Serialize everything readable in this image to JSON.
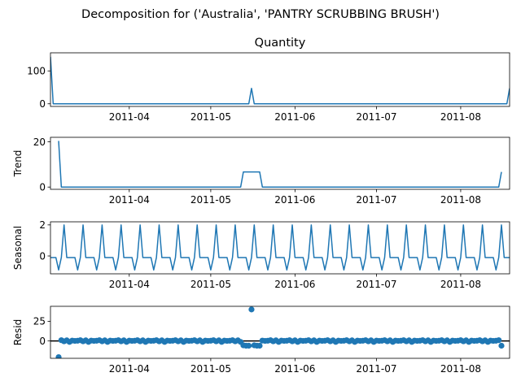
{
  "figure": {
    "suptitle": "Decomposition for ('Australia', 'PANTRY SCRUBBING BRUSH')"
  },
  "chart_data": [
    {
      "panel": "observed",
      "type": "line",
      "title": "Quantity",
      "ylabel": "",
      "ylim": [
        -8,
        155
      ],
      "yticks": [
        0,
        100
      ],
      "xlim": [
        "2011-03-03",
        "2011-08-19"
      ],
      "xticks": [
        "2011-04",
        "2011-05",
        "2011-06",
        "2011-07",
        "2011-08"
      ],
      "color": "#1f77b4",
      "series": [
        {
          "values": [
            {
              "x": "2011-03-03",
              "y": 143
            },
            {
              "x": "2011-03-04",
              "y": 0
            },
            {
              "x": "2011-05-15",
              "y": 0
            },
            {
              "x": "2011-05-16",
              "y": 47
            },
            {
              "x": "2011-05-17",
              "y": 0
            },
            {
              "x": "2011-08-18",
              "y": 0
            },
            {
              "x": "2011-08-19",
              "y": 47
            }
          ]
        }
      ]
    },
    {
      "panel": "trend",
      "type": "line",
      "title": "",
      "ylabel": "Trend",
      "ylim": [
        -1,
        22
      ],
      "yticks": [
        0,
        20
      ],
      "xlim": [
        "2011-03-03",
        "2011-08-19"
      ],
      "xticks": [
        "2011-04",
        "2011-05",
        "2011-06",
        "2011-07",
        "2011-08"
      ],
      "color": "#1f77b4",
      "series": [
        {
          "values": [
            {
              "x": "2011-03-06",
              "y": 20.4
            },
            {
              "x": "2011-03-07",
              "y": 0
            },
            {
              "x": "2011-05-12",
              "y": 0
            },
            {
              "x": "2011-05-13",
              "y": 6.7
            },
            {
              "x": "2011-05-19",
              "y": 6.7
            },
            {
              "x": "2011-05-20",
              "y": 0
            },
            {
              "x": "2011-08-15",
              "y": 0
            },
            {
              "x": "2011-08-16",
              "y": 6.7
            }
          ]
        }
      ]
    },
    {
      "panel": "seasonal",
      "type": "line",
      "title": "",
      "ylabel": "Seasonal",
      "ylim": [
        -1.15,
        2.2
      ],
      "yticks": [
        0,
        2
      ],
      "xlim": [
        "2011-03-03",
        "2011-08-19"
      ],
      "xticks": [
        "2011-04",
        "2011-05",
        "2011-06",
        "2011-07",
        "2011-08"
      ],
      "color": "#1f77b4",
      "period": 7,
      "pattern": [
        -0.1,
        -0.1,
        -0.1,
        -0.9,
        -0.1,
        2.0,
        -0.1
      ],
      "start": "2011-03-03",
      "end": "2011-08-19"
    },
    {
      "panel": "resid",
      "type": "scatter",
      "title": "",
      "ylabel": "Resid",
      "ylim": [
        -22,
        44
      ],
      "yticks": [
        0,
        25
      ],
      "zero_line": true,
      "xlim": [
        "2011-03-03",
        "2011-08-19"
      ],
      "xticks": [
        "2011-04",
        "2011-05",
        "2011-06",
        "2011-07",
        "2011-08"
      ],
      "color": "#1f77b4",
      "baseline": {
        "start": "2011-03-06",
        "end": "2011-08-16",
        "pattern": [
          0.3,
          1.0,
          -0.4,
          0.8,
          -1.2,
          0.5,
          0.1
        ]
      },
      "points": [
        {
          "x": "2011-03-06",
          "y": -20.5
        },
        {
          "x": "2011-05-13",
          "y": -5.5
        },
        {
          "x": "2011-05-14",
          "y": -6.0
        },
        {
          "x": "2011-05-15",
          "y": -6.0
        },
        {
          "x": "2011-05-16",
          "y": 40.0
        },
        {
          "x": "2011-05-17",
          "y": -5.5
        },
        {
          "x": "2011-05-18",
          "y": -6.0
        },
        {
          "x": "2011-05-19",
          "y": -6.0
        },
        {
          "x": "2011-08-16",
          "y": -6.0
        }
      ]
    }
  ]
}
